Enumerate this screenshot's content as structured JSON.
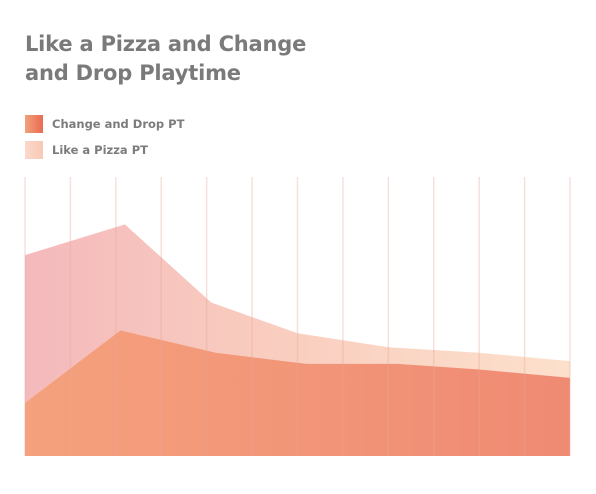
{
  "title_lines": [
    "Like a Pizza and Change",
    "and Drop Playtime"
  ],
  "legend": [
    {
      "label": "Change and Drop PT",
      "color": "#f08a66"
    },
    {
      "label": "Like a Pizza PT",
      "color": "#f9cdbd"
    }
  ],
  "chart_data": {
    "type": "area",
    "title": "Like a Pizza and Change and Drop Playtime",
    "x": [
      1,
      2,
      3,
      4,
      5,
      6,
      7,
      8,
      9,
      10,
      11,
      12,
      13
    ],
    "ylim": [
      0,
      100
    ],
    "grid": "vertical",
    "legend_position": "top-left",
    "series": [
      {
        "name": "Like a Pizza PT",
        "points": [
          {
            "x": 1,
            "y": 72
          },
          {
            "x": 3.2,
            "y": 83
          },
          {
            "x": 5.1,
            "y": 55
          },
          {
            "x": 7,
            "y": 44
          },
          {
            "x": 9,
            "y": 39
          },
          {
            "x": 11,
            "y": 37
          },
          {
            "x": 13,
            "y": 34
          }
        ]
      },
      {
        "name": "Change and Drop PT",
        "points": [
          {
            "x": 1,
            "y": 19
          },
          {
            "x": 3.1,
            "y": 45
          },
          {
            "x": 5.2,
            "y": 37
          },
          {
            "x": 7.2,
            "y": 33
          },
          {
            "x": 9.2,
            "y": 33
          },
          {
            "x": 11,
            "y": 31
          },
          {
            "x": 13,
            "y": 28
          }
        ]
      }
    ]
  }
}
